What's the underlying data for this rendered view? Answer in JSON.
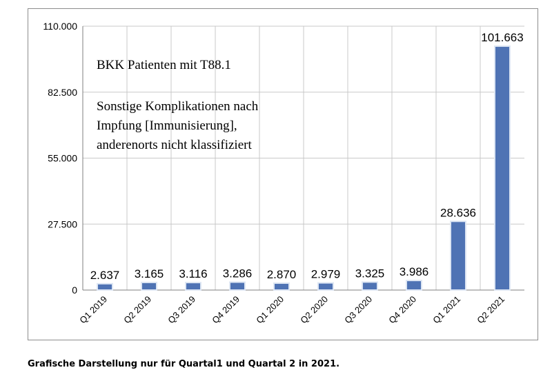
{
  "chart_data": {
    "type": "bar",
    "categories": [
      "Q1 2019",
      "Q2 2019",
      "Q3 2019",
      "Q4 2019",
      "Q1 2020",
      "Q2 2020",
      "Q3 2020",
      "Q4 2020",
      "Q1 2021",
      "Q2 2021"
    ],
    "values": [
      2637,
      3165,
      3116,
      3286,
      2870,
      2979,
      3325,
      3986,
      28636,
      101663
    ],
    "value_labels": [
      "2.637",
      "3.165",
      "3.116",
      "3.286",
      "2.870",
      "2.979",
      "3.325",
      "3.986",
      "28.636",
      "101.663"
    ],
    "ylim": [
      0,
      110000
    ],
    "yticks": [
      0,
      27500,
      55000,
      82500,
      110000
    ],
    "ytick_labels": [
      "0",
      "27.500",
      "55.000",
      "82.500",
      "110.000"
    ],
    "grid": true,
    "bar_color": "#4f73b4",
    "annotations": [
      "BKK Patienten mit T88.1",
      "Sonstige Komplikationen nach",
      "Impfung [Immunisierung],",
      "anderenorts nicht klassifiziert"
    ]
  },
  "caption": "Grafische Darstellung nur für Quartal1 und Quartal 2 in 2021."
}
